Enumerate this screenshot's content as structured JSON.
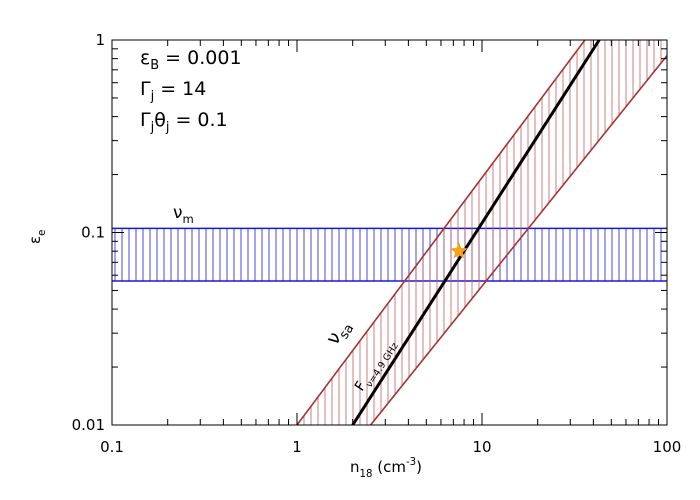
{
  "chart_data": {
    "type": "line",
    "xlog": true,
    "ylog": true,
    "xlim": [
      0.1,
      100
    ],
    "ylim": [
      0.01,
      1
    ],
    "xticks": [
      0.1,
      1,
      10,
      100
    ],
    "yticks": [
      0.01,
      0.1,
      1
    ],
    "xminorticks": [
      0.2,
      0.3,
      0.4,
      0.5,
      0.6,
      0.7,
      0.8,
      0.9,
      2,
      3,
      4,
      5,
      6,
      7,
      8,
      9,
      20,
      30,
      40,
      50,
      60,
      70,
      80,
      90
    ],
    "yminorticks": [
      0.02,
      0.03,
      0.04,
      0.05,
      0.06,
      0.07,
      0.08,
      0.09,
      0.2,
      0.3,
      0.4,
      0.5,
      0.6,
      0.7,
      0.8,
      0.9
    ],
    "xlabel": [
      {
        "text": "n"
      },
      {
        "sub": "18"
      },
      {
        "text": " (cm"
      },
      {
        "sup": "-3"
      },
      {
        "text": ")"
      }
    ],
    "ylabel": [
      {
        "text": "ε"
      },
      {
        "sub": "e"
      }
    ],
    "annotations": [
      [
        {
          "text": "ε"
        },
        {
          "sub": "B"
        },
        {
          "text": " = 0.001"
        }
      ],
      [
        {
          "text": "Γ"
        },
        {
          "sub": "j"
        },
        {
          "text": " = 14"
        }
      ],
      [
        {
          "text": "Γ"
        },
        {
          "sub": "j"
        },
        {
          "text": "θ"
        },
        {
          "sub": "j"
        },
        {
          "text": " = 0.1"
        }
      ]
    ],
    "band": {
      "y": [
        0.056,
        0.105
      ],
      "color": "#1a1ad6",
      "label": [
        {
          "text": "ν"
        },
        {
          "sub": "m"
        }
      ]
    },
    "series": [
      {
        "x": [
          1,
          36
        ],
        "values": [
          0.01,
          1
        ],
        "color": "#a83232"
      },
      {
        "x": [
          2.5,
          100
        ],
        "values": [
          0.01,
          0.83
        ],
        "color": "#a83232"
      },
      {
        "x": [
          2,
          43
        ],
        "values": [
          0.01,
          1
        ],
        "color": "#000000"
      }
    ],
    "region_label": [
      {
        "text": "ν"
      },
      {
        "sub": "sa"
      }
    ],
    "line_label": [
      {
        "text": "F"
      },
      {
        "sub": "ν=4.9 GHz"
      }
    ],
    "star": {
      "x": 7.5,
      "y": 0.08,
      "color": "#f7a31c"
    }
  }
}
